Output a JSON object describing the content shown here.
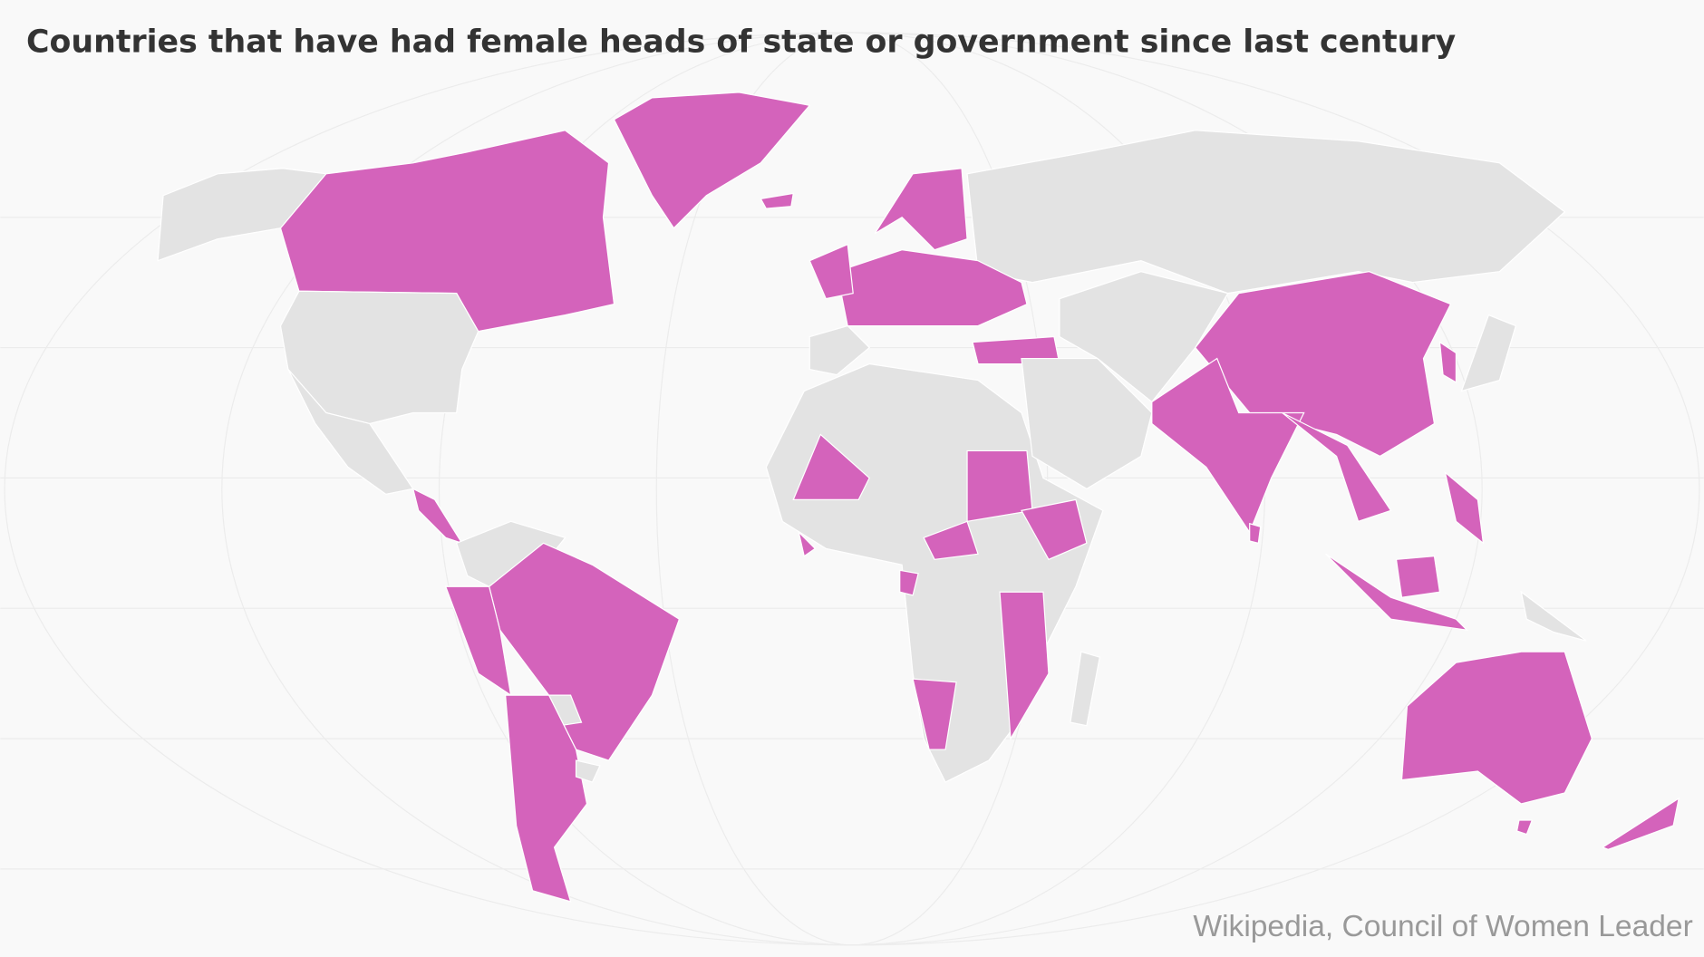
{
  "title": "Countries that have had female heads of state or government since last century",
  "source": "Wikipedia, Council of Women Leader"
}
